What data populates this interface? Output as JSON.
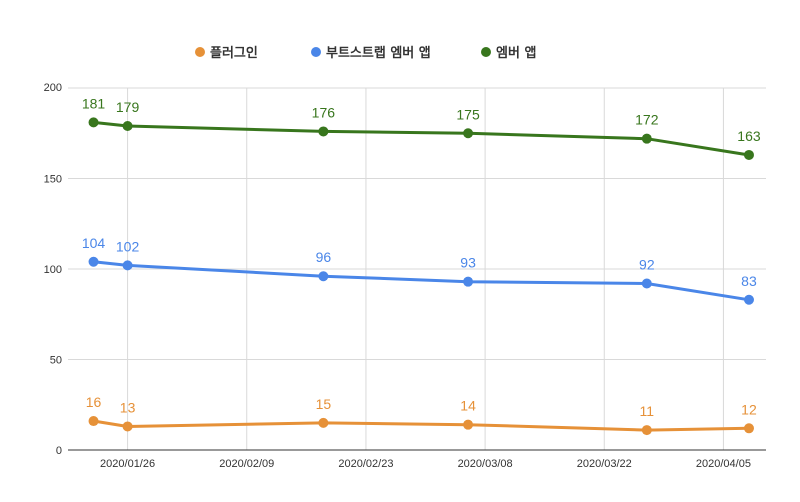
{
  "chart_data": {
    "type": "line",
    "title": "",
    "xlabel": "",
    "ylabel": "",
    "ylim": [
      0,
      200
    ],
    "yticks": [
      "0",
      "50",
      "100",
      "150",
      "200"
    ],
    "xticks": [
      "2020/01/26",
      "2020/02/09",
      "2020/02/23",
      "2020/03/08",
      "2020/03/22",
      "2020/04/05"
    ],
    "x": [
      "2020/01/22",
      "2020/01/26",
      "2020/02/18",
      "2020/03/06",
      "2020/03/27",
      "2020/04/08"
    ],
    "grid": true,
    "legend_position": "top",
    "series": [
      {
        "name": "플러그인",
        "color": "#e69138",
        "values": [
          16,
          13,
          15,
          14,
          11,
          12
        ]
      },
      {
        "name": "부트스트랩 엠버 앱",
        "color": "#4a86e8",
        "values": [
          104,
          102,
          96,
          93,
          92,
          83
        ]
      },
      {
        "name": "엠버 앱",
        "color": "#38761d",
        "values": [
          181,
          179,
          176,
          175,
          172,
          163
        ]
      }
    ]
  }
}
